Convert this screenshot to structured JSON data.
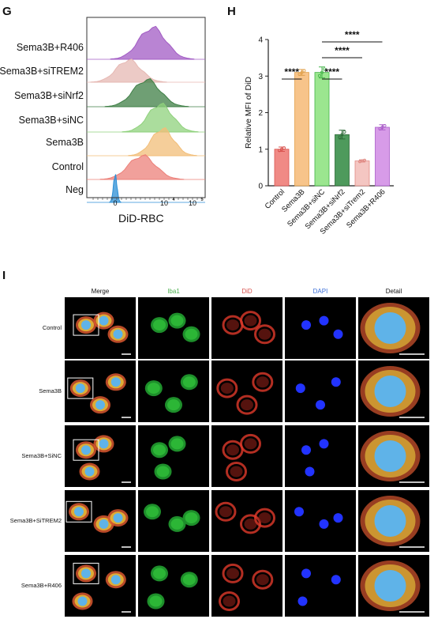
{
  "panel_g": {
    "letter": "G",
    "xlabel": "DiD-RBC",
    "tick_labels": [
      "0",
      "10",
      "4",
      "10",
      "5"
    ],
    "rows": [
      {
        "label": "Sema3B+R406",
        "color": "#a25bc4"
      },
      {
        "label": "Sema3B+siTREM2",
        "color": "#e6b8b3"
      },
      {
        "label": "Sema3B+siNrf2",
        "color": "#3f7f46"
      },
      {
        "label": "Sema3B+siNC",
        "color": "#8fd17c"
      },
      {
        "label": "Sema3B",
        "color": "#f2be78"
      },
      {
        "label": "Control",
        "color": "#ec8079"
      },
      {
        "label": "Neg",
        "color": "#2b8fd6"
      }
    ]
  },
  "panel_h": {
    "letter": "H",
    "significance": [
      "****",
      "****",
      "****",
      "****"
    ]
  },
  "panel_i": {
    "letter": "I",
    "columns": [
      "Merge",
      "Iba1",
      "DiD",
      "DAPI",
      "Detail"
    ],
    "column_colors": [
      "#111111",
      "#4caf50",
      "#d9534f",
      "#3b6fd8",
      "#111111"
    ],
    "rows": [
      "Control",
      "Sema3B",
      "Sema3B+SiNC",
      "Sema3B+SiTREM2",
      "Sema3B+R406"
    ]
  },
  "chart_data": {
    "type": "bar",
    "title": "",
    "xlabel": "",
    "ylabel": "Relative MFI of DiD",
    "ylim": [
      0,
      4
    ],
    "yticks": [
      "0",
      "1",
      "2",
      "3",
      "4"
    ],
    "categories": [
      "Control",
      "Sema3B",
      "Sema3B+siNC",
      "Sema3B+siNrf2",
      "Sema3B+siTrem2",
      "Sema3B+R406"
    ],
    "values": [
      1.0,
      3.1,
      3.1,
      1.4,
      0.68,
      1.6
    ],
    "errors": [
      0.06,
      0.08,
      0.15,
      0.12,
      0.03,
      0.07
    ],
    "colors": [
      "#f08a85",
      "#f7c48a",
      "#9be68f",
      "#4e9a5c",
      "#f4c6c2",
      "#d79be8"
    ],
    "edge_colors": [
      "#d9534f",
      "#e0a04a",
      "#43b348",
      "#2d6a37",
      "#e08a84",
      "#a95cc8"
    ]
  }
}
